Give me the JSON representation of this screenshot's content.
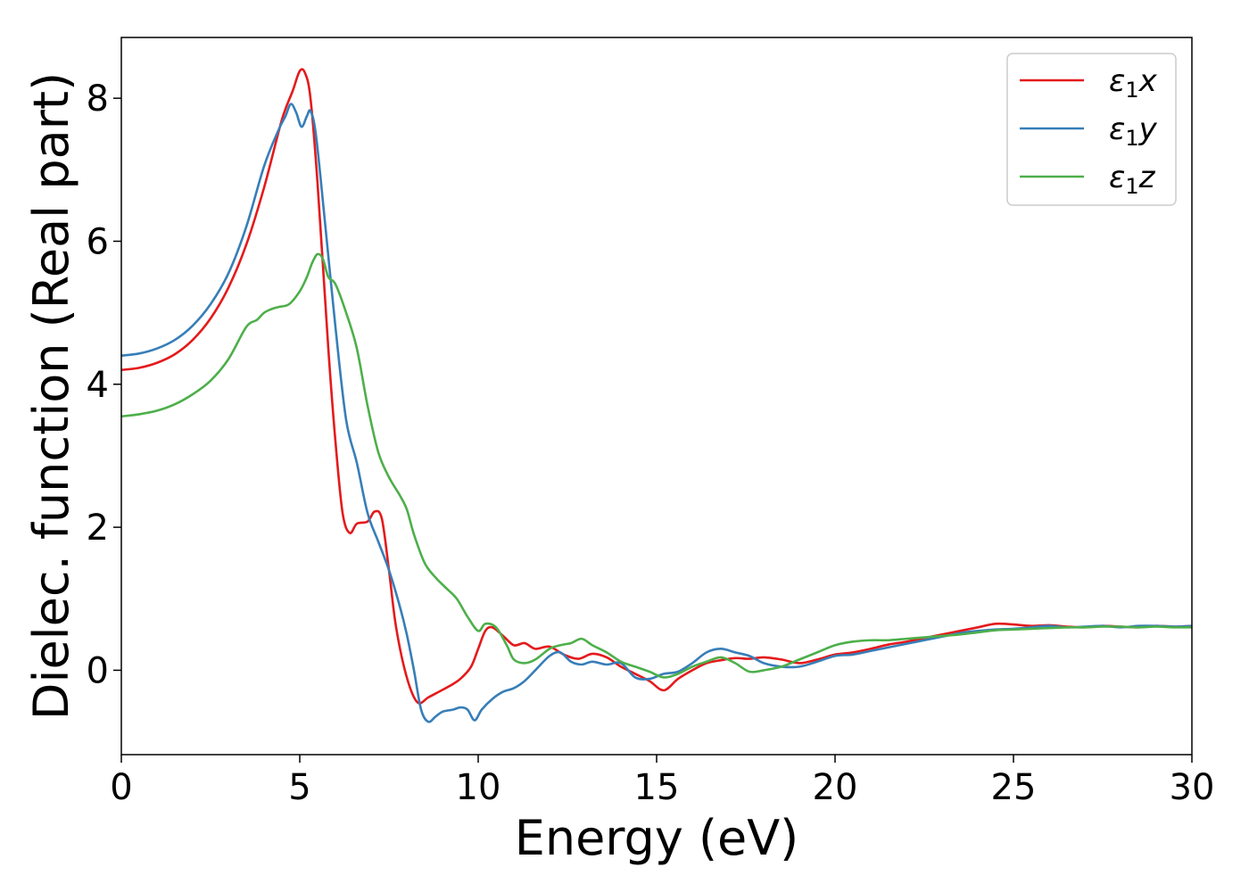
{
  "chart_data": {
    "type": "line",
    "title": "",
    "xlabel": "Energy (eV)",
    "ylabel": "Dielec. function (Real part)",
    "xlim": [
      0,
      30
    ],
    "ylim": [
      -1.18,
      8.85
    ],
    "xticks": [
      0,
      5,
      10,
      15,
      20,
      25,
      30
    ],
    "yticks": [
      0,
      2,
      4,
      6,
      8
    ],
    "grid": false,
    "legend_position": "top-right",
    "series": [
      {
        "name": "ε₁x",
        "legend": {
          "base": "ε",
          "sub": "1",
          "var": "x"
        },
        "color": "#e41a1c",
        "x": [
          0,
          0.5,
          1,
          1.5,
          2,
          2.5,
          3,
          3.5,
          4,
          4.5,
          4.8,
          5.0,
          5.15,
          5.3,
          5.5,
          5.8,
          6.0,
          6.2,
          6.4,
          6.6,
          6.9,
          7.1,
          7.3,
          7.5,
          7.7,
          8.0,
          8.3,
          8.6,
          8.9,
          9.2,
          9.5,
          9.8,
          10.0,
          10.2,
          10.4,
          10.7,
          11.0,
          11.3,
          11.6,
          12.0,
          12.4,
          12.8,
          13.2,
          13.6,
          14.0,
          14.4,
          14.8,
          15.2,
          15.6,
          16.0,
          16.4,
          16.8,
          17.2,
          17.6,
          18.0,
          18.5,
          19.0,
          19.5,
          20.0,
          20.5,
          21.0,
          21.5,
          22.0,
          22.5,
          23.0,
          23.5,
          24.0,
          24.5,
          25.0,
          25.5,
          26.0,
          26.5,
          27.0,
          27.5,
          28.0,
          28.5,
          29.0,
          29.5,
          30.0
        ],
        "values": [
          4.2,
          4.23,
          4.3,
          4.42,
          4.62,
          4.92,
          5.35,
          5.95,
          6.75,
          7.7,
          8.1,
          8.38,
          8.35,
          8.0,
          6.8,
          4.5,
          3.2,
          2.2,
          1.92,
          2.05,
          2.08,
          2.22,
          2.12,
          1.4,
          0.6,
          -0.1,
          -0.45,
          -0.38,
          -0.3,
          -0.22,
          -0.12,
          0.05,
          0.3,
          0.55,
          0.6,
          0.48,
          0.35,
          0.38,
          0.3,
          0.33,
          0.22,
          0.16,
          0.23,
          0.18,
          0.05,
          -0.05,
          -0.15,
          -0.28,
          -0.12,
          0.0,
          0.1,
          0.14,
          0.17,
          0.16,
          0.18,
          0.15,
          0.1,
          0.15,
          0.22,
          0.25,
          0.3,
          0.36,
          0.4,
          0.45,
          0.5,
          0.55,
          0.6,
          0.65,
          0.64,
          0.62,
          0.63,
          0.61,
          0.6,
          0.62,
          0.61,
          0.6,
          0.62,
          0.61,
          0.62
        ]
      },
      {
        "name": "ε₁y",
        "legend": {
          "base": "ε",
          "sub": "1",
          "var": "y"
        },
        "color": "#377eb8",
        "x": [
          0,
          0.5,
          1,
          1.5,
          2,
          2.5,
          3,
          3.5,
          4,
          4.4,
          4.6,
          4.75,
          4.9,
          5.05,
          5.2,
          5.3,
          5.45,
          5.7,
          6.0,
          6.3,
          6.6,
          6.9,
          7.2,
          7.5,
          7.8,
          8.0,
          8.2,
          8.4,
          8.6,
          8.8,
          9.0,
          9.3,
          9.5,
          9.7,
          9.9,
          10.1,
          10.4,
          10.7,
          11.0,
          11.3,
          11.6,
          12.0,
          12.3,
          12.6,
          12.9,
          13.2,
          13.6,
          14.0,
          14.4,
          14.8,
          15.2,
          15.6,
          16.0,
          16.4,
          16.8,
          17.2,
          17.6,
          18.0,
          18.5,
          19.0,
          19.5,
          20.0,
          20.5,
          21.0,
          21.5,
          22.0,
          22.5,
          23.0,
          23.5,
          24.0,
          24.5,
          25.0,
          25.5,
          26.0,
          26.5,
          27.0,
          27.5,
          28.0,
          28.5,
          29.0,
          29.5,
          30.0
        ],
        "values": [
          4.4,
          4.43,
          4.5,
          4.62,
          4.82,
          5.12,
          5.55,
          6.2,
          7.05,
          7.55,
          7.75,
          7.92,
          7.8,
          7.6,
          7.75,
          7.82,
          7.5,
          6.3,
          4.8,
          3.5,
          2.9,
          2.2,
          1.8,
          1.4,
          0.9,
          0.5,
          0.0,
          -0.55,
          -0.72,
          -0.65,
          -0.58,
          -0.55,
          -0.52,
          -0.55,
          -0.7,
          -0.55,
          -0.4,
          -0.3,
          -0.25,
          -0.15,
          0.0,
          0.2,
          0.25,
          0.12,
          0.08,
          0.12,
          0.08,
          0.1,
          -0.1,
          -0.12,
          -0.05,
          -0.02,
          0.1,
          0.25,
          0.3,
          0.25,
          0.2,
          0.1,
          0.05,
          0.05,
          0.12,
          0.2,
          0.22,
          0.27,
          0.32,
          0.37,
          0.42,
          0.47,
          0.52,
          0.55,
          0.57,
          0.58,
          0.6,
          0.62,
          0.6,
          0.61,
          0.62,
          0.6,
          0.62,
          0.62,
          0.61,
          0.62
        ]
      },
      {
        "name": "ε₁z",
        "legend": {
          "base": "ε",
          "sub": "1",
          "var": "z"
        },
        "color": "#4daf4a",
        "x": [
          0,
          0.5,
          1,
          1.5,
          2,
          2.5,
          3,
          3.5,
          3.8,
          4.0,
          4.2,
          4.4,
          4.7,
          5.0,
          5.2,
          5.35,
          5.5,
          5.65,
          5.8,
          6.0,
          6.3,
          6.6,
          6.9,
          7.2,
          7.5,
          7.8,
          8.0,
          8.2,
          8.5,
          8.8,
          9.1,
          9.4,
          9.7,
          10.0,
          10.2,
          10.5,
          10.8,
          11.0,
          11.3,
          11.6,
          12.0,
          12.3,
          12.6,
          12.9,
          13.2,
          13.6,
          14.0,
          14.4,
          14.8,
          15.2,
          15.6,
          16.0,
          16.4,
          16.8,
          17.2,
          17.6,
          18.0,
          18.5,
          19.0,
          19.5,
          20.0,
          20.5,
          21.0,
          21.5,
          22.0,
          22.5,
          23.0,
          23.5,
          24.0,
          24.5,
          25.0,
          25.5,
          26.0,
          26.5,
          27.0,
          27.5,
          28.0,
          28.5,
          29.0,
          29.5,
          30.0
        ],
        "values": [
          3.55,
          3.58,
          3.63,
          3.72,
          3.86,
          4.05,
          4.35,
          4.8,
          4.9,
          5.0,
          5.05,
          5.08,
          5.12,
          5.3,
          5.5,
          5.7,
          5.82,
          5.75,
          5.5,
          5.4,
          5.0,
          4.5,
          3.7,
          3.05,
          2.7,
          2.45,
          2.25,
          1.9,
          1.5,
          1.3,
          1.15,
          1.0,
          0.75,
          0.55,
          0.65,
          0.6,
          0.35,
          0.15,
          0.1,
          0.15,
          0.3,
          0.35,
          0.38,
          0.44,
          0.35,
          0.25,
          0.12,
          0.05,
          -0.02,
          -0.1,
          -0.05,
          0.05,
          0.12,
          0.18,
          0.1,
          -0.02,
          0.0,
          0.05,
          0.15,
          0.25,
          0.35,
          0.4,
          0.42,
          0.42,
          0.44,
          0.46,
          0.48,
          0.5,
          0.53,
          0.56,
          0.57,
          0.58,
          0.59,
          0.6,
          0.6,
          0.61,
          0.61,
          0.6,
          0.61,
          0.6,
          0.6
        ]
      }
    ]
  }
}
